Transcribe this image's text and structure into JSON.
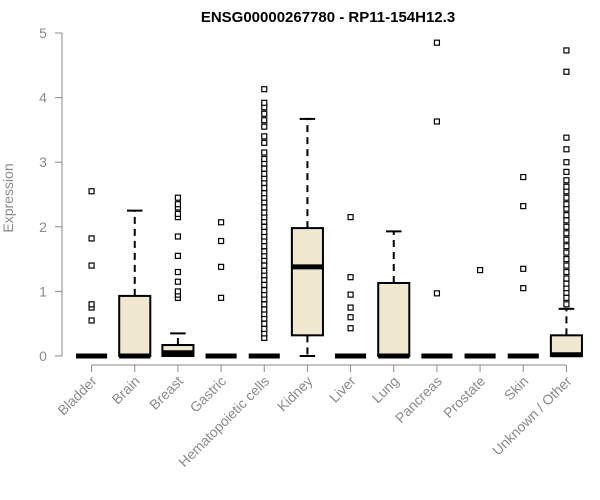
{
  "chart_data": {
    "type": "box",
    "title": "ENSG00000267780 - RP11-154H12.3",
    "xlabel": "",
    "ylabel": "Expression",
    "ylim": [
      0,
      5
    ],
    "yticks": [
      0,
      1,
      2,
      3,
      4,
      5
    ],
    "grid": false,
    "box_fill": "#efe7cf",
    "categories": [
      "Bladder",
      "Brain",
      "Breast",
      "Gastric",
      "Hematopoietic cells",
      "Kidney",
      "Liver",
      "Lung",
      "Pancreas",
      "Prostate",
      "Skin",
      "Unknown / Other"
    ],
    "boxes": [
      {
        "q1": 0,
        "median": 0,
        "q3": 0,
        "whisker_low": 0,
        "whisker_high": 0,
        "outliers": [
          0.55,
          0.75,
          0.8,
          1.4,
          1.82,
          2.55
        ]
      },
      {
        "q1": 0,
        "median": 0,
        "q3": 0.93,
        "whisker_low": 0,
        "whisker_high": 2.25,
        "outliers": []
      },
      {
        "q1": 0,
        "median": 0.05,
        "q3": 0.17,
        "whisker_low": 0,
        "whisker_high": 0.35,
        "outliers": [
          0.9,
          0.95,
          1.0,
          1.15,
          1.3,
          1.55,
          1.85,
          2.15,
          2.2,
          2.3,
          2.35,
          2.45
        ]
      },
      {
        "q1": 0,
        "median": 0,
        "q3": 0,
        "whisker_low": 0,
        "whisker_high": 0,
        "outliers": [
          0.9,
          1.38,
          1.78,
          2.07
        ]
      },
      {
        "q1": 0,
        "median": 0,
        "q3": 0,
        "whisker_low": 0,
        "whisker_high": 0,
        "outliers": [
          0.28,
          0.35,
          0.42,
          0.5,
          0.58,
          0.65,
          0.72,
          0.8,
          0.88,
          0.95,
          1.02,
          1.1,
          1.18,
          1.25,
          1.32,
          1.4,
          1.48,
          1.55,
          1.62,
          1.7,
          1.78,
          1.85,
          1.92,
          2.0,
          2.08,
          2.15,
          2.22,
          2.3,
          2.38,
          2.45,
          2.52,
          2.6,
          2.68,
          2.75,
          2.82,
          2.9,
          2.98,
          3.05,
          3.15,
          3.3,
          3.4,
          3.55,
          3.65,
          3.75,
          3.85,
          3.92,
          4.13
        ]
      },
      {
        "q1": 0.32,
        "median": 1.38,
        "q3": 1.98,
        "whisker_low": 0,
        "whisker_high": 3.67,
        "outliers": []
      },
      {
        "q1": 0,
        "median": 0,
        "q3": 0,
        "whisker_low": 0,
        "whisker_high": 0,
        "outliers": [
          0.43,
          0.6,
          0.75,
          0.95,
          1.22,
          2.15
        ]
      },
      {
        "q1": 0,
        "median": 0,
        "q3": 1.13,
        "whisker_low": 0,
        "whisker_high": 1.93,
        "outliers": []
      },
      {
        "q1": 0,
        "median": 0,
        "q3": 0,
        "whisker_low": 0,
        "whisker_high": 0,
        "outliers": [
          0.97,
          3.63,
          4.85
        ]
      },
      {
        "q1": 0,
        "median": 0,
        "q3": 0,
        "whisker_low": 0,
        "whisker_high": 0,
        "outliers": [
          1.33
        ]
      },
      {
        "q1": 0,
        "median": 0,
        "q3": 0,
        "whisker_low": 0,
        "whisker_high": 0,
        "outliers": [
          1.05,
          1.35,
          2.32,
          2.77
        ]
      },
      {
        "q1": 0,
        "median": 0.02,
        "q3": 0.32,
        "whisker_low": 0,
        "whisker_high": 0.73,
        "outliers": [
          0.8,
          0.9,
          0.98,
          1.05,
          1.12,
          1.2,
          1.3,
          1.4,
          1.5,
          1.6,
          1.7,
          1.8,
          1.9,
          2.0,
          2.1,
          2.18,
          2.28,
          2.35,
          2.45,
          2.55,
          2.62,
          2.72,
          2.85,
          3.0,
          3.2,
          3.38,
          4.4,
          4.73
        ]
      }
    ]
  }
}
